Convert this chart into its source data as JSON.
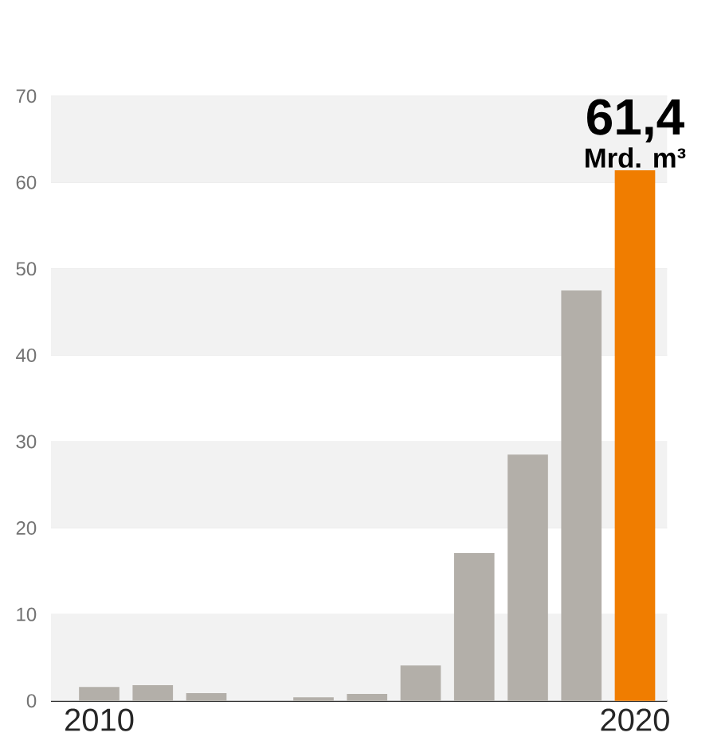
{
  "chart_data": {
    "type": "bar",
    "categories": [
      "2010",
      null,
      null,
      null,
      null,
      null,
      null,
      null,
      null,
      null,
      "2020"
    ],
    "values": [
      1.6,
      1.8,
      0.9,
      0,
      0.4,
      0.8,
      4.1,
      17.1,
      28.5,
      47.5,
      61.4
    ],
    "colors": [
      "#b3afa9",
      "#b3afa9",
      "#b3afa9",
      "#b3afa9",
      "#b3afa9",
      "#b3afa9",
      "#b3afa9",
      "#b3afa9",
      "#b3afa9",
      "#b3afa9",
      "#f07d00"
    ],
    "value_labels": [
      null,
      null,
      null,
      null,
      null,
      null,
      null,
      null,
      null,
      null,
      "61,4"
    ],
    "annotations": [
      {
        "text": "Mrd. m³",
        "x": "2020",
        "y": 61.4
      }
    ],
    "ylim": [
      0,
      70
    ],
    "yticks": [
      0,
      10,
      20,
      30,
      40,
      50,
      60,
      70
    ],
    "grid": "y"
  }
}
